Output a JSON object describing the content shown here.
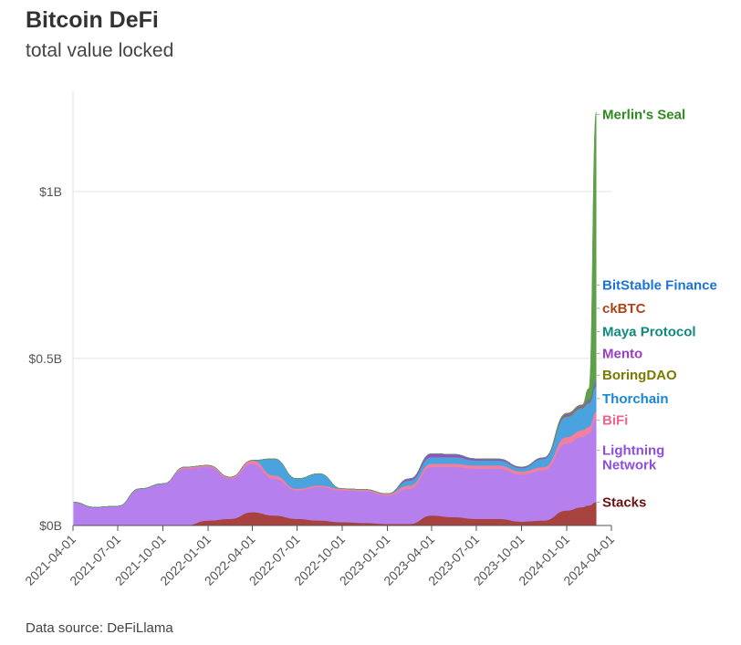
{
  "chart_data": {
    "type": "area",
    "title": "Bitcoin DeFi",
    "subtitle": "total value locked",
    "source": "Data source: DeFiLlama",
    "x": [
      "2021-04-01",
      "2021-05-15",
      "2021-07-01",
      "2021-08-15",
      "2021-10-01",
      "2021-11-15",
      "2022-01-01",
      "2022-02-15",
      "2022-04-01",
      "2022-05-15",
      "2022-07-01",
      "2022-08-15",
      "2022-10-01",
      "2022-11-15",
      "2023-01-01",
      "2023-02-15",
      "2023-04-01",
      "2023-05-15",
      "2023-07-01",
      "2023-08-15",
      "2023-10-01",
      "2023-11-15",
      "2024-01-01",
      "2024-02-01",
      "2024-02-15",
      "2024-03-01"
    ],
    "x_ticks": [
      "2021-04-01",
      "2021-07-01",
      "2021-10-01",
      "2022-01-01",
      "2022-04-01",
      "2022-07-01",
      "2022-10-01",
      "2023-01-01",
      "2023-04-01",
      "2023-07-01",
      "2023-10-01",
      "2024-01-01",
      "2024-04-01"
    ],
    "y_ticks": [
      "$0B",
      "$0.5B",
      "$1B"
    ],
    "ylim": [
      0,
      1.3
    ],
    "grid": true,
    "series": [
      {
        "name": "Stacks",
        "color": "#a8423f",
        "label_color": "#6b0f0f",
        "label_y": 0.07,
        "values": [
          0,
          0,
          0,
          0,
          0,
          0,
          0.015,
          0.02,
          0.04,
          0.03,
          0.02,
          0.015,
          0.01,
          0.008,
          0.005,
          0.005,
          0.03,
          0.025,
          0.02,
          0.02,
          0.012,
          0.015,
          0.045,
          0.055,
          0.06,
          0.07
        ]
      },
      {
        "name": "Lightning Network",
        "color": "#b57fee",
        "label_color": "#8f4ee0",
        "label_y": 0.225,
        "values": [
          0.07,
          0.055,
          0.058,
          0.11,
          0.125,
          0.17,
          0.16,
          0.12,
          0.145,
          0.11,
          0.085,
          0.1,
          0.095,
          0.095,
          0.085,
          0.105,
          0.145,
          0.15,
          0.15,
          0.15,
          0.14,
          0.15,
          0.2,
          0.21,
          0.215,
          0.25
        ]
      },
      {
        "name": "BiFi",
        "color": "#f07fa0",
        "label_color": "#f0648c",
        "label_y": 0.315,
        "values": [
          0,
          0,
          0,
          0,
          0,
          0.005,
          0.005,
          0.005,
          0.01,
          0.01,
          0.005,
          0.005,
          0.005,
          0.005,
          0.005,
          0.01,
          0.01,
          0.01,
          0.01,
          0.01,
          0.01,
          0.01,
          0.02,
          0.02,
          0.02,
          0.02
        ]
      },
      {
        "name": "Thorchain",
        "color": "#4aa3df",
        "label_color": "#1a87d4",
        "label_y": 0.38,
        "values": [
          0,
          0,
          0,
          0,
          0,
          0,
          0,
          0,
          0,
          0.05,
          0.03,
          0.035,
          0,
          0,
          0,
          0.015,
          0.02,
          0.02,
          0.015,
          0.015,
          0.01,
          0.025,
          0.06,
          0.065,
          0.07,
          0.075
        ]
      },
      {
        "name": "BoringDAO",
        "color": "#8a8a2e",
        "label_color": "#7a7a00",
        "label_y": 0.45,
        "values": [
          0,
          0,
          0,
          0,
          0,
          0,
          0,
          0,
          0,
          0,
          0,
          0,
          0,
          0,
          0,
          0,
          0,
          0,
          0,
          0,
          0,
          0,
          0.003,
          0.003,
          0.003,
          0.003
        ]
      },
      {
        "name": "Mento",
        "color": "#9b4cc7",
        "label_color": "#9b3cc8",
        "label_y": 0.515,
        "values": [
          0,
          0,
          0,
          0,
          0,
          0,
          0,
          0,
          0,
          0,
          0,
          0,
          0,
          0,
          0,
          0.005,
          0.01,
          0.008,
          0.005,
          0.004,
          0.003,
          0.003,
          0.004,
          0.004,
          0.004,
          0.005
        ]
      },
      {
        "name": "Maya Protocol",
        "color": "#2f9a8e",
        "label_color": "#0f8a7c",
        "label_y": 0.58,
        "values": [
          0,
          0,
          0,
          0,
          0,
          0,
          0,
          0,
          0,
          0,
          0,
          0,
          0,
          0,
          0,
          0,
          0,
          0,
          0,
          0,
          0,
          0,
          0.002,
          0.002,
          0.005,
          0.01
        ]
      },
      {
        "name": "ckBTC",
        "color": "#b8673e",
        "label_color": "#b0421a",
        "label_y": 0.65,
        "values": [
          0,
          0,
          0,
          0,
          0,
          0,
          0,
          0,
          0,
          0,
          0,
          0,
          0,
          0,
          0,
          0,
          0,
          0,
          0,
          0,
          0,
          0,
          0.002,
          0.002,
          0.003,
          0.003
        ]
      },
      {
        "name": "BitStable Finance",
        "color": "#3f8fe0",
        "label_color": "#1a74d4",
        "label_y": 0.72,
        "values": [
          0,
          0,
          0,
          0,
          0,
          0,
          0,
          0,
          0,
          0,
          0,
          0,
          0,
          0,
          0,
          0,
          0,
          0,
          0,
          0,
          0,
          0,
          0,
          0,
          0,
          0.002
        ]
      },
      {
        "name": "Merlin's Seal",
        "color": "#5ea04a",
        "label_color": "#2e8a1e",
        "label_y": 1.23,
        "values": [
          0,
          0,
          0,
          0,
          0,
          0,
          0,
          0,
          0,
          0,
          0,
          0,
          0,
          0,
          0,
          0,
          0,
          0,
          0,
          0,
          0,
          0,
          0,
          0,
          0.03,
          0.8
        ]
      }
    ]
  }
}
